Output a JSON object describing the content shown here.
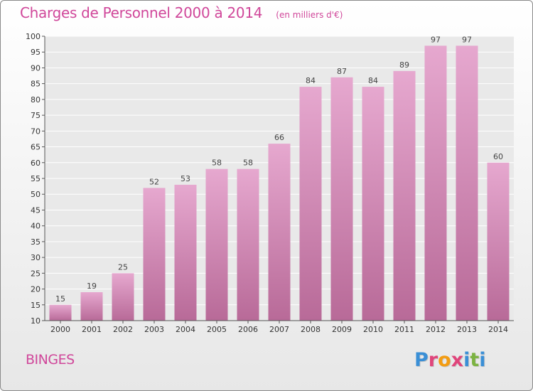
{
  "header": {
    "title": "Charges de Personnel 2000 à 2014",
    "subtitle": "(en milliers d'€)"
  },
  "footer": {
    "place": "BINGES",
    "logo_text": "Proxiti",
    "logo_colors": [
      "#3a8fd6",
      "#e0457b",
      "#f39c12",
      "#e0457b",
      "#3a8fd6",
      "#7cb342",
      "#3a8fd6"
    ]
  },
  "chart_data": {
    "type": "bar",
    "categories": [
      "2000",
      "2001",
      "2002",
      "2003",
      "2004",
      "2005",
      "2006",
      "2007",
      "2008",
      "2009",
      "2010",
      "2011",
      "2012",
      "2013",
      "2014"
    ],
    "values": [
      15,
      19,
      25,
      52,
      53,
      58,
      58,
      66,
      84,
      87,
      84,
      89,
      97,
      97,
      60
    ],
    "ylim": [
      10,
      100
    ],
    "yticks": [
      10,
      15,
      20,
      25,
      30,
      35,
      40,
      45,
      50,
      55,
      60,
      65,
      70,
      75,
      80,
      85,
      90,
      95,
      100
    ],
    "grid": true,
    "bar_color_top": "#e6a8cf",
    "bar_color_bottom": "#b86a98"
  }
}
